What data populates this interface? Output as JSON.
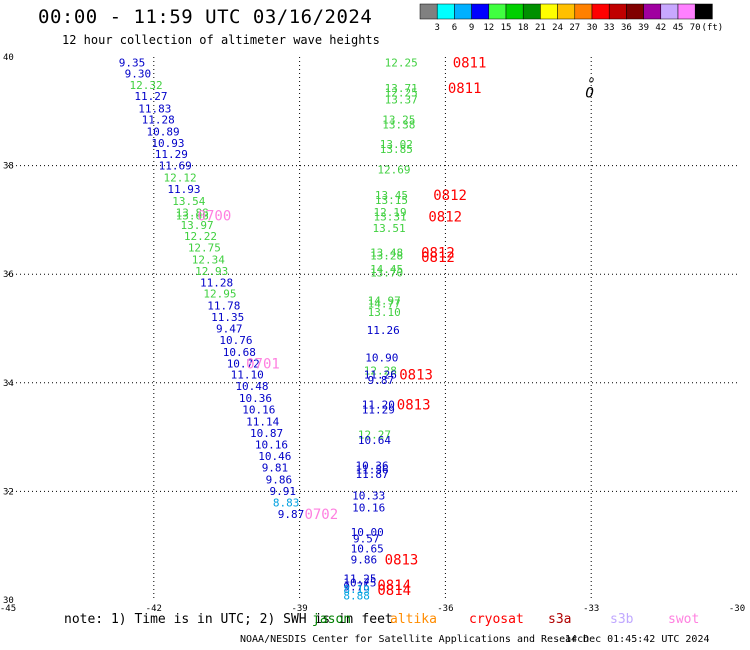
{
  "title": "00:00 - 11:59 UTC 03/16/2024",
  "subtitle": "12 hour collection of altimeter wave heights",
  "note": "note: 1) Time is in UTC; 2) SWH is in feet",
  "credit": "NOAA/NESDIS Center for Satellite Applications and Research",
  "generated": "14 Dec 01:45:42 UTC 2024",
  "colors": {
    "background": "#ffffff",
    "grid": "#000000",
    "jason": "#008000",
    "altika": "#ff8c00",
    "cryosat": "#ff0000",
    "s3a": "#b00000",
    "s3b": "#c0a8ff",
    "swot": "#ff80e0"
  },
  "satellites": [
    {
      "name": "jason",
      "color": "#008000"
    },
    {
      "name": "altika",
      "color": "#ff8c00"
    },
    {
      "name": "cryosat",
      "color": "#ff0000"
    },
    {
      "name": "s3a",
      "color": "#b00000"
    },
    {
      "name": "s3b",
      "color": "#c0a8ff"
    },
    {
      "name": "swot",
      "color": "#ff80e0"
    }
  ],
  "colorbar": {
    "labels": [
      "3",
      "6",
      "9",
      "12",
      "15",
      "18",
      "21",
      "24",
      "27",
      "30",
      "33",
      "36",
      "39",
      "42",
      "45",
      "70",
      "(ft)"
    ],
    "colors": [
      "#808080",
      "#00ffff",
      "#00b0ff",
      "#0000ff",
      "#40ff40",
      "#00d000",
      "#009000",
      "#ffff00",
      "#ffc000",
      "#ff8000",
      "#ff0000",
      "#c00000",
      "#800000",
      "#a000a0",
      "#c8a8ff",
      "#ff80ff",
      "#000000"
    ]
  },
  "chart_data": {
    "type": "scatter",
    "xlim": [
      -45,
      -30
    ],
    "ylim": [
      30,
      40
    ],
    "xticks": [
      -45,
      -42,
      -39,
      -36,
      -33,
      -30
    ],
    "xtick_labels": [
      "-45",
      "-42",
      "-39",
      "-36",
      "-33",
      "-30"
    ],
    "yticks": [
      30,
      32,
      34,
      36,
      38,
      40
    ],
    "ytick_labels": [
      "30",
      "32",
      "34",
      "36",
      "38",
      "40"
    ],
    "grid": true,
    "points": [
      {
        "x": -42.72,
        "y": 39.9,
        "v": "9.35",
        "c": "#0000c8"
      },
      {
        "x": -42.6,
        "y": 39.7,
        "v": "9.30",
        "c": "#0000c8"
      },
      {
        "x": -42.5,
        "y": 39.48,
        "v": "12.32",
        "c": "#40d040"
      },
      {
        "x": -42.4,
        "y": 39.28,
        "v": "11.27",
        "c": "#0000c8"
      },
      {
        "x": -42.32,
        "y": 39.05,
        "v": "11.83",
        "c": "#0000c8"
      },
      {
        "x": -42.25,
        "y": 38.85,
        "v": "11.28",
        "c": "#0000c8"
      },
      {
        "x": -42.15,
        "y": 38.63,
        "v": "10.89",
        "c": "#0000c8"
      },
      {
        "x": -42.05,
        "y": 38.42,
        "v": "10.93",
        "c": "#0000c8"
      },
      {
        "x": -41.98,
        "y": 38.21,
        "v": "11.29",
        "c": "#0000c8"
      },
      {
        "x": -41.9,
        "y": 38.0,
        "v": "11.69",
        "c": "#0000c8"
      },
      {
        "x": -41.8,
        "y": 37.78,
        "v": "12.12",
        "c": "#40d040"
      },
      {
        "x": -41.72,
        "y": 37.57,
        "v": "11.93",
        "c": "#0000c8"
      },
      {
        "x": -41.62,
        "y": 37.35,
        "v": "13.54",
        "c": "#40d040"
      },
      {
        "x": -41.55,
        "y": 37.14,
        "v": "13.88",
        "c": "#40d040"
      },
      {
        "x": -41.55,
        "y": 37.08,
        "v": "13.68",
        "c": "#40d040"
      },
      {
        "x": -41.45,
        "y": 36.91,
        "v": "13.97",
        "c": "#40d040"
      },
      {
        "x": -41.38,
        "y": 36.7,
        "v": "12.22",
        "c": "#40d040"
      },
      {
        "x": -41.3,
        "y": 36.49,
        "v": "12.75",
        "c": "#40d040"
      },
      {
        "x": -41.22,
        "y": 36.27,
        "v": "12.34",
        "c": "#40d040"
      },
      {
        "x": -41.15,
        "y": 36.06,
        "v": "12.93",
        "c": "#40d040"
      },
      {
        "x": -41.05,
        "y": 35.85,
        "v": "11.28",
        "c": "#0000c8"
      },
      {
        "x": -40.98,
        "y": 35.64,
        "v": "12.95",
        "c": "#40d040"
      },
      {
        "x": -40.9,
        "y": 35.42,
        "v": "11.78",
        "c": "#0000c8"
      },
      {
        "x": -40.82,
        "y": 35.21,
        "v": "11.35",
        "c": "#0000c8"
      },
      {
        "x": -40.72,
        "y": 35.0,
        "v": "9.47",
        "c": "#0000c8"
      },
      {
        "x": -40.65,
        "y": 34.79,
        "v": "10.76",
        "c": "#0000c8"
      },
      {
        "x": -40.58,
        "y": 34.57,
        "v": "10.68",
        "c": "#0000c8"
      },
      {
        "x": -40.5,
        "y": 34.36,
        "v": "10.72",
        "c": "#0000c8"
      },
      {
        "x": -40.42,
        "y": 34.15,
        "v": "11.10",
        "c": "#0000c8"
      },
      {
        "x": -40.32,
        "y": 33.94,
        "v": "10.48",
        "c": "#0000c8"
      },
      {
        "x": -40.25,
        "y": 33.72,
        "v": "10.36",
        "c": "#0000c8"
      },
      {
        "x": -40.18,
        "y": 33.51,
        "v": "10.16",
        "c": "#0000c8"
      },
      {
        "x": -40.1,
        "y": 33.29,
        "v": "11.14",
        "c": "#0000c8"
      },
      {
        "x": -40.02,
        "y": 33.08,
        "v": "10.87",
        "c": "#0000c8"
      },
      {
        "x": -39.92,
        "y": 32.86,
        "v": "10.16",
        "c": "#0000c8"
      },
      {
        "x": -39.85,
        "y": 32.65,
        "v": "10.46",
        "c": "#0000c8"
      },
      {
        "x": -39.78,
        "y": 32.44,
        "v": "9.81",
        "c": "#0000c8"
      },
      {
        "x": -39.7,
        "y": 32.22,
        "v": "9.86",
        "c": "#0000c8"
      },
      {
        "x": -39.62,
        "y": 32.01,
        "v": "9.91",
        "c": "#0000c8"
      },
      {
        "x": -39.55,
        "y": 31.8,
        "v": "8.83",
        "c": "#00a0e0"
      },
      {
        "x": -39.45,
        "y": 31.58,
        "v": "9.87",
        "c": "#0000c8"
      },
      {
        "x": -37.25,
        "y": 39.9,
        "v": "12.25",
        "c": "#40d040"
      },
      {
        "x": -37.25,
        "y": 39.43,
        "v": "13.71",
        "c": "#40d040"
      },
      {
        "x": -37.25,
        "y": 39.35,
        "v": "12.25",
        "c": "#40d040"
      },
      {
        "x": -37.25,
        "y": 39.22,
        "v": "13.37",
        "c": "#40d040"
      },
      {
        "x": -37.3,
        "y": 38.85,
        "v": "13.25",
        "c": "#40d040"
      },
      {
        "x": -37.3,
        "y": 38.76,
        "v": "13.38",
        "c": "#40d040"
      },
      {
        "x": -37.35,
        "y": 38.4,
        "v": "13.02",
        "c": "#40d040"
      },
      {
        "x": -37.35,
        "y": 38.31,
        "v": "13.85",
        "c": "#40d040"
      },
      {
        "x": -37.4,
        "y": 37.93,
        "v": "12.69",
        "c": "#40d040"
      },
      {
        "x": -37.45,
        "y": 37.46,
        "v": "13.45",
        "c": "#40d040"
      },
      {
        "x": -37.45,
        "y": 37.37,
        "v": "13.15",
        "c": "#40d040"
      },
      {
        "x": -37.48,
        "y": 37.15,
        "v": "12.19",
        "c": "#40d040"
      },
      {
        "x": -37.48,
        "y": 37.06,
        "v": "13.31",
        "c": "#40d040"
      },
      {
        "x": -37.5,
        "y": 36.85,
        "v": "13.51",
        "c": "#40d040"
      },
      {
        "x": -37.55,
        "y": 36.4,
        "v": "13.48",
        "c": "#40d040"
      },
      {
        "x": -37.55,
        "y": 36.34,
        "v": "13.28",
        "c": "#40d040"
      },
      {
        "x": -37.55,
        "y": 36.1,
        "v": "14.45",
        "c": "#40d040"
      },
      {
        "x": -37.55,
        "y": 36.03,
        "v": "13.70",
        "c": "#40d040"
      },
      {
        "x": -37.6,
        "y": 35.52,
        "v": "14.97",
        "c": "#40d040"
      },
      {
        "x": -37.6,
        "y": 35.46,
        "v": "14.77",
        "c": "#40d040"
      },
      {
        "x": -37.6,
        "y": 35.3,
        "v": "13.10",
        "c": "#40d040"
      },
      {
        "x": -37.62,
        "y": 34.97,
        "v": "11.26",
        "c": "#0000c8"
      },
      {
        "x": -37.65,
        "y": 34.47,
        "v": "10.90",
        "c": "#0000c8"
      },
      {
        "x": -37.68,
        "y": 34.23,
        "v": "12.28",
        "c": "#40d040"
      },
      {
        "x": -37.68,
        "y": 34.15,
        "v": "11.26",
        "c": "#0000c8"
      },
      {
        "x": -37.6,
        "y": 34.05,
        "v": "9.87",
        "c": "#0000c8"
      },
      {
        "x": -37.72,
        "y": 33.6,
        "v": "11.20",
        "c": "#0000c8"
      },
      {
        "x": -37.72,
        "y": 33.51,
        "v": "11.29",
        "c": "#0000c8"
      },
      {
        "x": -37.8,
        "y": 33.05,
        "v": "12.27",
        "c": "#40d040"
      },
      {
        "x": -37.8,
        "y": 32.95,
        "v": "10.64",
        "c": "#0000c8"
      },
      {
        "x": -37.85,
        "y": 32.48,
        "v": "10.36",
        "c": "#0000c8"
      },
      {
        "x": -37.85,
        "y": 32.4,
        "v": "11.56",
        "c": "#0000c8"
      },
      {
        "x": -37.85,
        "y": 32.32,
        "v": "11.87",
        "c": "#0000c8"
      },
      {
        "x": -37.92,
        "y": 31.92,
        "v": "10.33",
        "c": "#0000c8"
      },
      {
        "x": -37.92,
        "y": 31.7,
        "v": "10.16",
        "c": "#0000c8"
      },
      {
        "x": -37.95,
        "y": 31.25,
        "v": "10.00",
        "c": "#0000c8"
      },
      {
        "x": -37.9,
        "y": 31.13,
        "v": "9.57",
        "c": "#0000c8"
      },
      {
        "x": -37.95,
        "y": 30.95,
        "v": "10.65",
        "c": "#0000c8"
      },
      {
        "x": -37.95,
        "y": 30.75,
        "v": "9.86",
        "c": "#0000c8"
      },
      {
        "x": -38.1,
        "y": 30.4,
        "v": "11.25",
        "c": "#0000c8"
      },
      {
        "x": -38.1,
        "y": 30.32,
        "v": "10.75",
        "c": "#0000c8"
      },
      {
        "x": -38.1,
        "y": 30.25,
        "v": "9.75",
        "c": "#0000c8"
      },
      {
        "x": -38.1,
        "y": 30.2,
        "v": "8.19",
        "c": "#00a0e0"
      },
      {
        "x": -38.1,
        "y": 30.08,
        "v": "8.88",
        "c": "#00a0e0"
      }
    ],
    "time_labels": [
      {
        "x": -35.85,
        "y": 39.9,
        "t": "0811",
        "c": "#ff0000"
      },
      {
        "x": -35.95,
        "y": 39.43,
        "t": "0811",
        "c": "#ff0000"
      },
      {
        "x": -36.25,
        "y": 37.46,
        "t": "0812",
        "c": "#ff0000"
      },
      {
        "x": -36.35,
        "y": 37.06,
        "t": "0812",
        "c": "#ff0000"
      },
      {
        "x": -36.5,
        "y": 36.4,
        "t": "0812",
        "c": "#ff0000"
      },
      {
        "x": -36.5,
        "y": 36.32,
        "t": "0812",
        "c": "#ff0000"
      },
      {
        "x": -36.95,
        "y": 34.15,
        "t": "0813",
        "c": "#ff0000"
      },
      {
        "x": -37.0,
        "y": 33.6,
        "t": "0813",
        "c": "#ff0000"
      },
      {
        "x": -37.25,
        "y": 30.75,
        "t": "0813",
        "c": "#ff0000"
      },
      {
        "x": -37.4,
        "y": 30.28,
        "t": "0814",
        "c": "#ff0000"
      },
      {
        "x": -37.4,
        "y": 30.18,
        "t": "0814",
        "c": "#ff0000"
      },
      {
        "x": -41.1,
        "y": 37.08,
        "t": "0700",
        "c": "#ff80e0"
      },
      {
        "x": -40.1,
        "y": 34.36,
        "t": "0701",
        "c": "#ff80e0"
      },
      {
        "x": -38.9,
        "y": 31.58,
        "t": "0702",
        "c": "#ff80e0"
      }
    ],
    "markers": [
      {
        "x": -33.12,
        "y": 39.35,
        "t": "O",
        "c": "#000000"
      },
      {
        "x": -33.05,
        "y": 39.62,
        "t": "o",
        "c": "#000000"
      }
    ]
  }
}
